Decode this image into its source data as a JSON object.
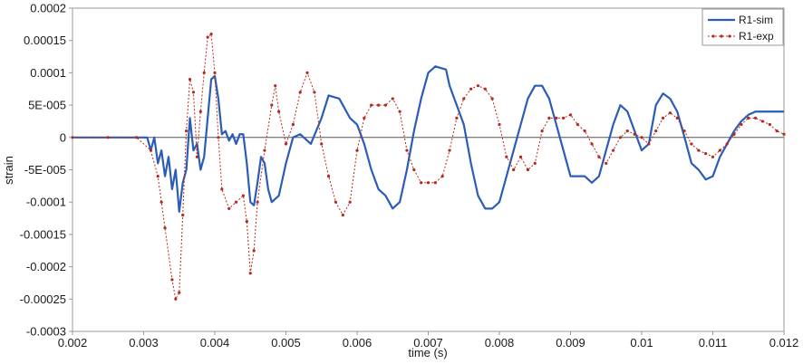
{
  "chart_data": {
    "type": "line",
    "xlabel": "time (s)",
    "ylabel": "strain",
    "xlim": [
      0.002,
      0.012
    ],
    "ylim": [
      -0.0003,
      0.0002
    ],
    "x_ticks": [
      0.002,
      0.003,
      0.004,
      0.005,
      0.006,
      0.007,
      0.008,
      0.009,
      0.01,
      0.011,
      0.012
    ],
    "x_tick_labels": [
      "0.002",
      "0.003",
      "0.004",
      "0.005",
      "0.006",
      "0.007",
      "0.008",
      "0.009",
      "0.01",
      "0.011",
      "0.012"
    ],
    "y_ticks": [
      0.0002,
      0.00015,
      0.0001,
      5e-05,
      0,
      -5e-05,
      -0.0001,
      -0.00015,
      -0.0002,
      -0.00025,
      -0.0003
    ],
    "y_tick_labels": [
      "0.0002",
      "0.00015",
      "0.0001",
      "5E-005",
      "0",
      "-5E-005",
      "-0.0001",
      "-0.00015",
      "-0.0002",
      "-0.00025",
      "-0.0003"
    ],
    "grid": false,
    "zero_line": true,
    "legend_position": "top-right",
    "series": [
      {
        "name": "R1-sim",
        "color": "#2b5cb8",
        "marker": "none",
        "points": [
          [
            0.002,
            0
          ],
          [
            0.0025,
            0
          ],
          [
            0.0029,
            0
          ],
          [
            0.00305,
            0
          ],
          [
            0.0031,
            -2e-05
          ],
          [
            0.00315,
            0.0
          ],
          [
            0.0032,
            -4e-05
          ],
          [
            0.00325,
            -2e-05
          ],
          [
            0.0033,
            -6e-05
          ],
          [
            0.00335,
            -3e-05
          ],
          [
            0.0034,
            -8e-05
          ],
          [
            0.00345,
            -5e-05
          ],
          [
            0.0035,
            -0.000115
          ],
          [
            0.00355,
            -7e-05
          ],
          [
            0.0036,
            -5e-05
          ],
          [
            0.00365,
            3e-05
          ],
          [
            0.0037,
            -2e-05
          ],
          [
            0.00375,
            -1e-05
          ],
          [
            0.0038,
            -5e-05
          ],
          [
            0.00385,
            -3e-05
          ],
          [
            0.0039,
            3e-05
          ],
          [
            0.00395,
            9e-05
          ],
          [
            0.004,
            9.5e-05
          ],
          [
            0.00405,
            6e-05
          ],
          [
            0.0041,
            5e-06
          ],
          [
            0.00415,
            1e-05
          ],
          [
            0.0042,
            -5e-06
          ],
          [
            0.00425,
            5e-06
          ],
          [
            0.0043,
            -1e-05
          ],
          [
            0.00435,
            5e-06
          ],
          [
            0.0044,
            5e-06
          ],
          [
            0.00445,
            -4e-05
          ],
          [
            0.0045,
            -0.0001
          ],
          [
            0.00455,
            -0.000105
          ],
          [
            0.0046,
            -7e-05
          ],
          [
            0.00465,
            -3e-05
          ],
          [
            0.0047,
            -4e-05
          ],
          [
            0.00475,
            -8e-05
          ],
          [
            0.0048,
            -0.0001
          ],
          [
            0.0049,
            -9e-05
          ],
          [
            0.005,
            -4e-05
          ],
          [
            0.0051,
            0.0
          ],
          [
            0.0052,
            5e-06
          ],
          [
            0.00535,
            -1e-05
          ],
          [
            0.0055,
            3e-05
          ],
          [
            0.0056,
            6.5e-05
          ],
          [
            0.00575,
            6e-05
          ],
          [
            0.0059,
            3e-05
          ],
          [
            0.006,
            2e-05
          ],
          [
            0.0061,
            -1e-05
          ],
          [
            0.0062,
            -5e-05
          ],
          [
            0.0063,
            -8e-05
          ],
          [
            0.0064,
            -9e-05
          ],
          [
            0.0065,
            -0.00011
          ],
          [
            0.0066,
            -0.0001
          ],
          [
            0.0067,
            -5e-05
          ],
          [
            0.0068,
            1e-05
          ],
          [
            0.0069,
            6e-05
          ],
          [
            0.007,
            0.0001
          ],
          [
            0.0071,
            0.00011
          ],
          [
            0.00725,
            0.000105
          ],
          [
            0.0073,
            8e-05
          ],
          [
            0.0075,
            2e-05
          ],
          [
            0.0076,
            -4e-05
          ],
          [
            0.0077,
            -9e-05
          ],
          [
            0.0078,
            -0.00011
          ],
          [
            0.0079,
            -0.00011
          ],
          [
            0.008,
            -0.0001
          ],
          [
            0.0081,
            -6e-05
          ],
          [
            0.0082,
            -2e-05
          ],
          [
            0.0083,
            2e-05
          ],
          [
            0.0084,
            6e-05
          ],
          [
            0.0085,
            8e-05
          ],
          [
            0.0086,
            8e-05
          ],
          [
            0.0087,
            6e-05
          ],
          [
            0.0088,
            2e-05
          ],
          [
            0.0089,
            -2e-05
          ],
          [
            0.009,
            -6e-05
          ],
          [
            0.0091,
            -6e-05
          ],
          [
            0.0092,
            -6e-05
          ],
          [
            0.0093,
            -7e-05
          ],
          [
            0.0094,
            -6e-05
          ],
          [
            0.0095,
            -2e-05
          ],
          [
            0.0096,
            2e-05
          ],
          [
            0.0097,
            5e-05
          ],
          [
            0.0098,
            4e-05
          ],
          [
            0.0099,
            1e-05
          ],
          [
            0.01,
            -2e-05
          ],
          [
            0.0101,
            -1e-05
          ],
          [
            0.0102,
            5e-05
          ],
          [
            0.0103,
            6.8e-05
          ],
          [
            0.0104,
            6e-05
          ],
          [
            0.0105,
            4e-05
          ],
          [
            0.0106,
            1e-06
          ],
          [
            0.0107,
            -4e-05
          ],
          [
            0.0108,
            -5e-05
          ],
          [
            0.0109,
            -6.5e-05
          ],
          [
            0.011,
            -6e-05
          ],
          [
            0.0111,
            -3e-05
          ],
          [
            0.0112,
            -1e-05
          ],
          [
            0.0113,
            1e-05
          ],
          [
            0.0114,
            2.5e-05
          ],
          [
            0.0115,
            3.5e-05
          ],
          [
            0.0116,
            4e-05
          ],
          [
            0.012,
            4e-05
          ]
        ]
      },
      {
        "name": "R1-exp",
        "color": "#b52a1e",
        "marker": "dot",
        "points": [
          [
            0.002,
            0
          ],
          [
            0.0025,
            0
          ],
          [
            0.0029,
            0
          ],
          [
            0.0031,
            -2e-05
          ],
          [
            0.0032,
            -6e-05
          ],
          [
            0.00325,
            -0.0001
          ],
          [
            0.0033,
            -0.00014
          ],
          [
            0.0034,
            -0.00022
          ],
          [
            0.00345,
            -0.00025
          ],
          [
            0.0035,
            -0.00024
          ],
          [
            0.00355,
            -0.00012
          ],
          [
            0.0036,
            1e-05
          ],
          [
            0.00365,
            9e-05
          ],
          [
            0.0037,
            7e-05
          ],
          [
            0.00375,
            -3e-05
          ],
          [
            0.0038,
            4e-05
          ],
          [
            0.00385,
            0.0001
          ],
          [
            0.0039,
            0.000155
          ],
          [
            0.00395,
            0.00016
          ],
          [
            0.004,
            0.0001
          ],
          [
            0.00405,
            0.0
          ],
          [
            0.0041,
            -8e-05
          ],
          [
            0.0042,
            -0.00011
          ],
          [
            0.0043,
            -0.0001
          ],
          [
            0.0044,
            -9e-05
          ],
          [
            0.00445,
            -0.00013
          ],
          [
            0.0045,
            -0.00021
          ],
          [
            0.00455,
            -0.000175
          ],
          [
            0.0046,
            -0.0001
          ],
          [
            0.0047,
            -2e-05
          ],
          [
            0.0048,
            5e-05
          ],
          [
            0.00485,
            8e-05
          ],
          [
            0.0049,
            4e-05
          ],
          [
            0.005,
            -1e-05
          ],
          [
            0.0051,
            2e-05
          ],
          [
            0.0052,
            7e-05
          ],
          [
            0.0053,
            0.0001
          ],
          [
            0.0054,
            7e-05
          ],
          [
            0.0055,
            -1e-05
          ],
          [
            0.0056,
            -6e-05
          ],
          [
            0.0057,
            -0.0001
          ],
          [
            0.0058,
            -0.00012
          ],
          [
            0.0059,
            -0.0001
          ],
          [
            0.006,
            -2e-05
          ],
          [
            0.0061,
            3e-05
          ],
          [
            0.0062,
            5e-05
          ],
          [
            0.0063,
            5e-05
          ],
          [
            0.0064,
            5e-05
          ],
          [
            0.0065,
            6e-05
          ],
          [
            0.0066,
            4e-05
          ],
          [
            0.0067,
            -2e-05
          ],
          [
            0.0068,
            -5e-05
          ],
          [
            0.0069,
            -7e-05
          ],
          [
            0.007,
            -7e-05
          ],
          [
            0.0071,
            -7e-05
          ],
          [
            0.0072,
            -6e-05
          ],
          [
            0.0073,
            -2e-05
          ],
          [
            0.0074,
            3e-05
          ],
          [
            0.0075,
            6e-05
          ],
          [
            0.0076,
            7.5e-05
          ],
          [
            0.0077,
            8e-05
          ],
          [
            0.0078,
            7.5e-05
          ],
          [
            0.0079,
            6e-05
          ],
          [
            0.008,
            2e-05
          ],
          [
            0.0081,
            -3e-05
          ],
          [
            0.0082,
            -5e-05
          ],
          [
            0.0083,
            -3e-05
          ],
          [
            0.0084,
            -5e-05
          ],
          [
            0.0085,
            -4e-05
          ],
          [
            0.0086,
            1e-05
          ],
          [
            0.0087,
            3e-05
          ],
          [
            0.0088,
            3e-05
          ],
          [
            0.0089,
            3e-05
          ],
          [
            0.009,
            3.5e-05
          ],
          [
            0.0091,
            2e-05
          ],
          [
            0.0092,
            1e-05
          ],
          [
            0.0093,
            -1e-05
          ],
          [
            0.0094,
            -3e-05
          ],
          [
            0.0095,
            -4e-05
          ],
          [
            0.0096,
            -2e-05
          ],
          [
            0.0097,
            0.0
          ],
          [
            0.0098,
            1e-05
          ],
          [
            0.0099,
            5e-06
          ],
          [
            0.01,
            0.0
          ],
          [
            0.0101,
            -1e-05
          ],
          [
            0.0102,
            1e-05
          ],
          [
            0.0103,
            3e-05
          ],
          [
            0.0104,
            3.8e-05
          ],
          [
            0.0105,
            3e-05
          ],
          [
            0.0106,
            1e-05
          ],
          [
            0.0107,
            -1e-05
          ],
          [
            0.0108,
            -2e-05
          ],
          [
            0.0109,
            -2.5e-05
          ],
          [
            0.011,
            -3e-05
          ],
          [
            0.0111,
            -2e-05
          ],
          [
            0.0112,
            -1e-05
          ],
          [
            0.0113,
            5e-06
          ],
          [
            0.0114,
            2e-05
          ],
          [
            0.0115,
            3e-05
          ],
          [
            0.0116,
            3e-05
          ],
          [
            0.0117,
            2.5e-05
          ],
          [
            0.0118,
            2e-05
          ],
          [
            0.0119,
            1e-05
          ],
          [
            0.012,
            5e-06
          ]
        ]
      }
    ]
  }
}
